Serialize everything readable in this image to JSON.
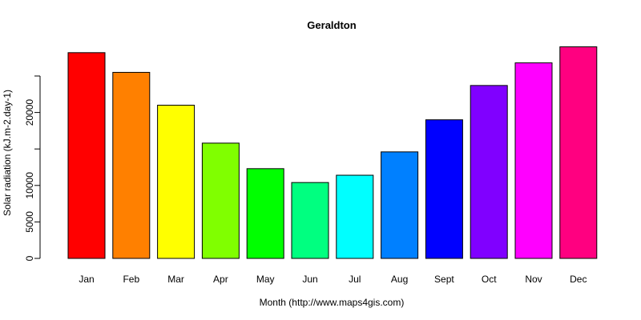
{
  "chart_data": {
    "type": "bar",
    "title": "Geraldton",
    "xlabel": "Month (http://www.maps4gis.com)",
    "ylabel": "Solar radiation (kJ.m-2.day-1)",
    "categories": [
      "Jan",
      "Feb",
      "Mar",
      "Apr",
      "May",
      "Jun",
      "Jul",
      "Aug",
      "Sept",
      "Oct",
      "Nov",
      "Dec"
    ],
    "values": [
      28200,
      25500,
      21000,
      15800,
      12300,
      10400,
      11400,
      14600,
      19000,
      23700,
      26800,
      29000
    ],
    "colors": [
      "#FF0000",
      "#FF8000",
      "#FFFF00",
      "#80FF00",
      "#00FF00",
      "#00FF80",
      "#00FFFF",
      "#0080FF",
      "#0000FF",
      "#8000FF",
      "#FF00FF",
      "#FF0080"
    ],
    "yticks": [
      0,
      5000,
      10000,
      15000,
      20000,
      25000
    ],
    "ytick_labels": [
      "0",
      "5000",
      "10000",
      "",
      "20000",
      ""
    ],
    "ylim": [
      0,
      29000
    ],
    "grid": false,
    "legend": "none"
  }
}
